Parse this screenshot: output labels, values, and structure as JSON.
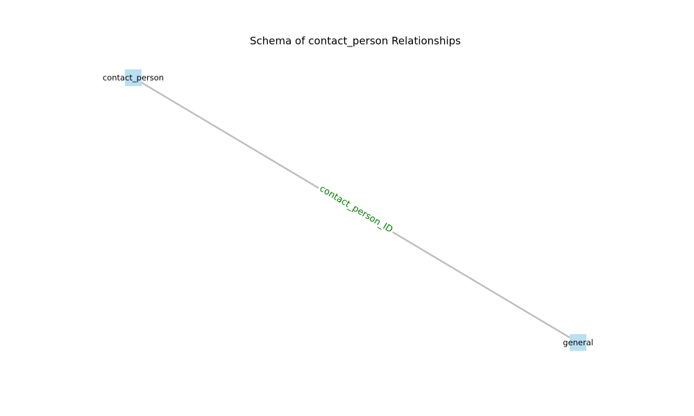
{
  "diagram": {
    "title": "Schema of contact_person Relationships",
    "colors": {
      "node_fill": "#b9dff2",
      "edge": "#bfbfbf",
      "edge_label": "#008000",
      "text": "#000000"
    },
    "nodes": [
      {
        "id": "contact_person",
        "label": "contact_person"
      },
      {
        "id": "general",
        "label": "general"
      }
    ],
    "edges": [
      {
        "source": "contact_person",
        "target": "general",
        "label": "contact_person_ID"
      }
    ]
  }
}
